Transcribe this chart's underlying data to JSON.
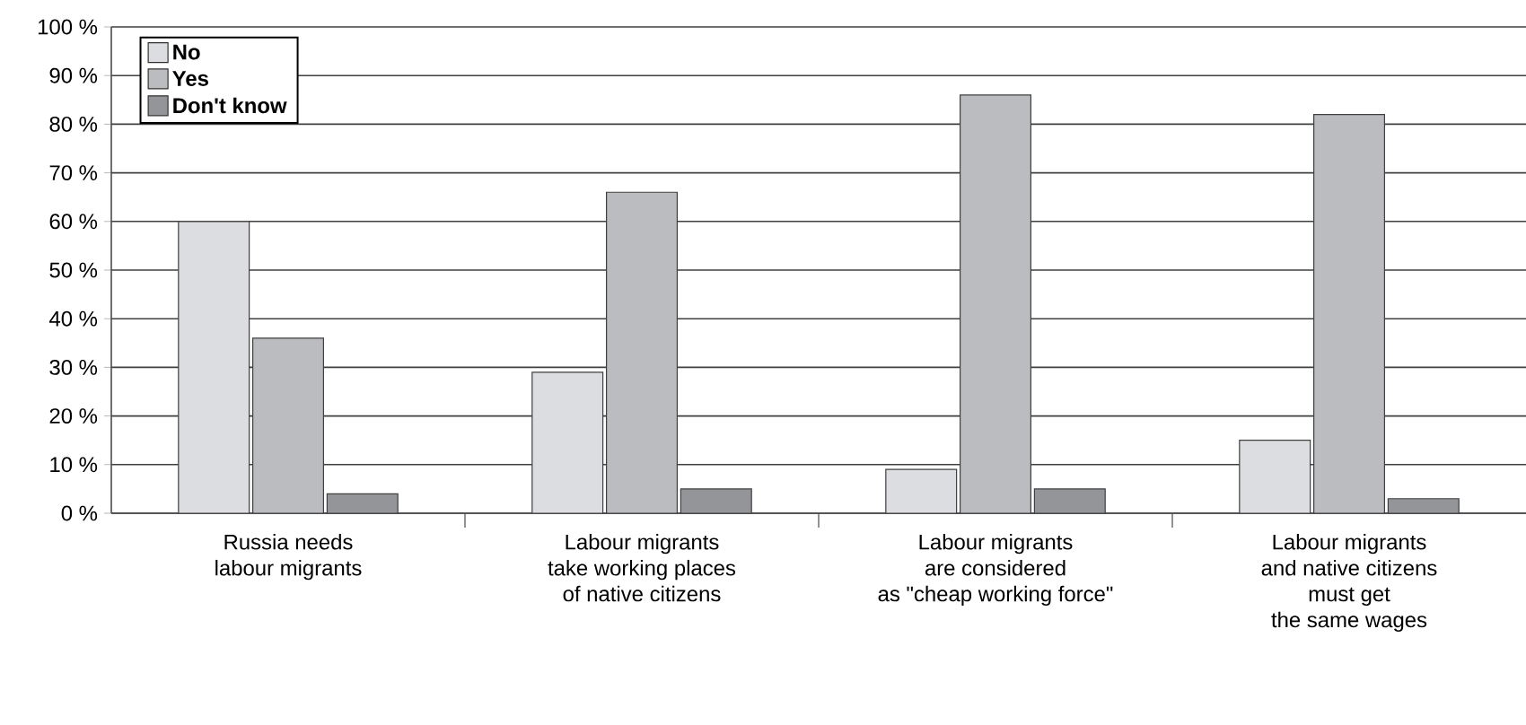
{
  "chart_data": {
    "type": "bar",
    "categories": [
      "Russia needs\nlabour migrants",
      "Labour migrants\ntake working places\nof native citizens",
      "Labour migrants\nare considered\nas \"cheap working force\"",
      "Labour migrants\nand native citizens\nmust get\nthe same wages"
    ],
    "series": [
      {
        "name": "No",
        "color": "#dcdde0",
        "values": [
          60,
          29,
          9,
          15
        ]
      },
      {
        "name": "Yes",
        "color": "#bbbcc0",
        "values": [
          36,
          66,
          86,
          82
        ]
      },
      {
        "name": "Don't know",
        "color": "#939598",
        "values": [
          4,
          5,
          5,
          3
        ]
      }
    ],
    "ylim": [
      0,
      100
    ],
    "yticks": [
      {
        "value": 0,
        "label": "0 %"
      },
      {
        "value": 10,
        "label": "10 %"
      },
      {
        "value": 20,
        "label": "20 %"
      },
      {
        "value": 30,
        "label": "30 %"
      },
      {
        "value": 40,
        "label": "40 %"
      },
      {
        "value": 50,
        "label": "50 %"
      },
      {
        "value": 60,
        "label": "60 %"
      },
      {
        "value": 70,
        "label": "70 %"
      },
      {
        "value": 80,
        "label": "80 %"
      },
      {
        "value": 90,
        "label": "90 %"
      },
      {
        "value": 100,
        "label": "100 %"
      }
    ],
    "grid": "y",
    "legend": "top left"
  }
}
